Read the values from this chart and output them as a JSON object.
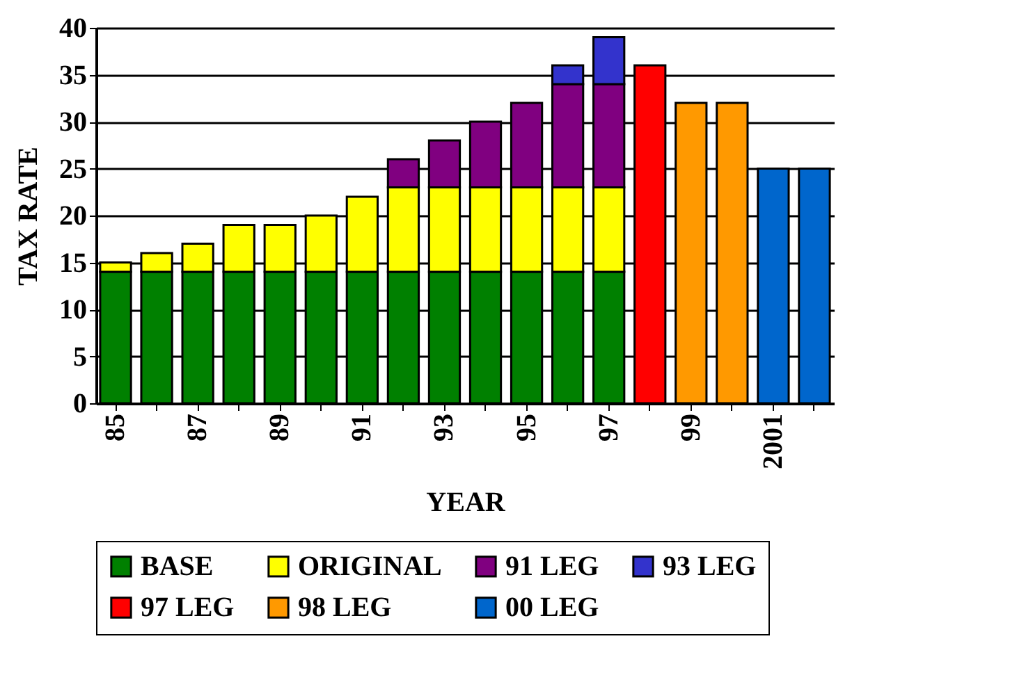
{
  "chart_data": {
    "type": "bar",
    "stacked": true,
    "xlabel": "YEAR",
    "ylabel": "TAX RATE",
    "categories": [
      "85",
      null,
      "87",
      null,
      "89",
      null,
      "91",
      null,
      "93",
      null,
      "95",
      null,
      "97",
      null,
      "99",
      null,
      "2001",
      null
    ],
    "series": [
      {
        "name": "BASE",
        "color": "#008000",
        "values": [
          14,
          14,
          14,
          14,
          14,
          14,
          14,
          14,
          14,
          14,
          14,
          14,
          14,
          null,
          null,
          null,
          null,
          null
        ]
      },
      {
        "name": "ORIGINAL",
        "color": "#ffff00",
        "values": [
          1,
          2,
          3,
          5,
          5,
          6,
          8,
          9,
          9,
          9,
          9,
          9,
          9,
          null,
          null,
          null,
          null,
          null
        ]
      },
      {
        "name": "91 LEG",
        "color": "#800080",
        "values": [
          null,
          null,
          null,
          null,
          null,
          null,
          null,
          3,
          5,
          7,
          9,
          11,
          11,
          null,
          null,
          null,
          null,
          null
        ]
      },
      {
        "name": "93 LEG",
        "color": "#3333cc",
        "values": [
          null,
          null,
          null,
          null,
          null,
          null,
          null,
          null,
          null,
          null,
          null,
          2,
          5,
          null,
          null,
          null,
          null,
          null
        ]
      },
      {
        "name": "97 LEG",
        "color": "#ff0000",
        "values": [
          null,
          null,
          null,
          null,
          null,
          null,
          null,
          null,
          null,
          null,
          null,
          null,
          null,
          36,
          null,
          null,
          null,
          null
        ]
      },
      {
        "name": "98 LEG",
        "color": "#ff9900",
        "values": [
          null,
          null,
          null,
          null,
          null,
          null,
          null,
          null,
          null,
          null,
          null,
          null,
          null,
          null,
          32,
          32,
          null,
          null
        ]
      },
      {
        "name": "00 LEG",
        "color": "#0066cc",
        "values": [
          null,
          null,
          null,
          null,
          null,
          null,
          null,
          null,
          null,
          null,
          null,
          null,
          null,
          null,
          null,
          null,
          25,
          25
        ]
      }
    ],
    "ylim": [
      0,
      40
    ],
    "yticks": [
      0,
      5,
      10,
      15,
      20,
      25,
      30,
      35,
      40
    ],
    "grid": "y",
    "legend": "bottom"
  }
}
